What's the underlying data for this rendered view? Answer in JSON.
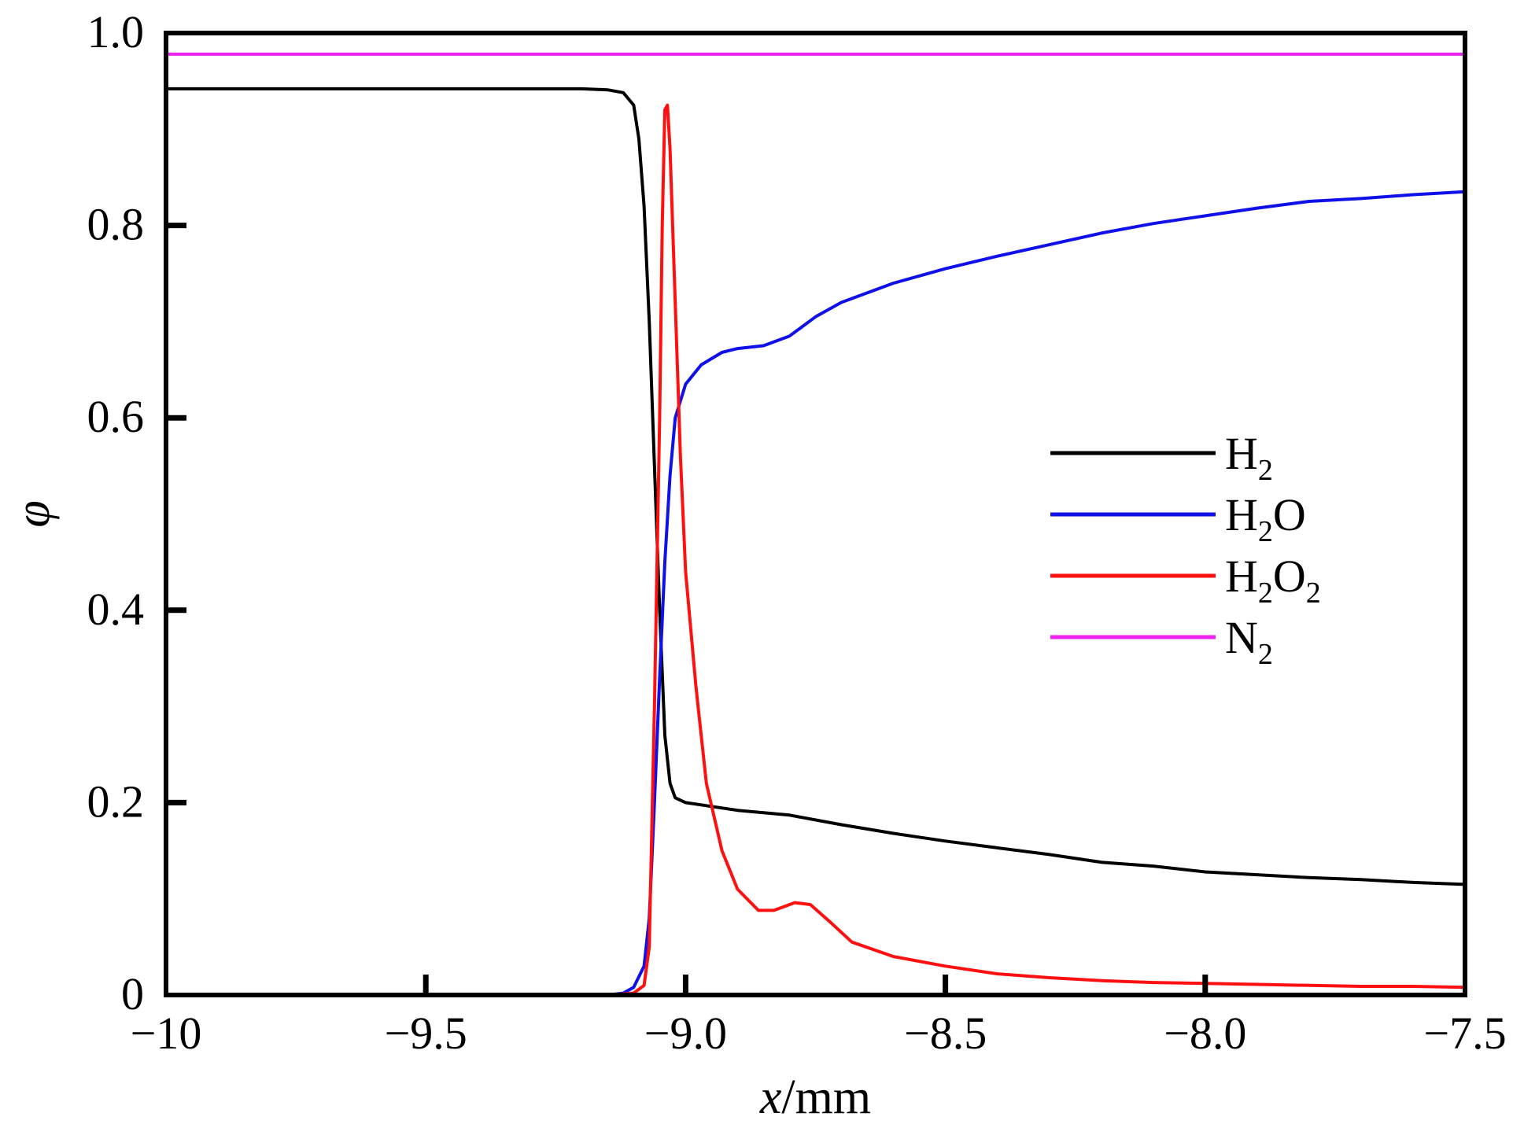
{
  "chart_data": {
    "type": "line",
    "xlabel_var": "x",
    "xlabel_unit": "/mm",
    "ylabel": "φ",
    "xlim": [
      -10,
      -7.5
    ],
    "ylim": [
      0,
      1.0
    ],
    "xticks": [
      -10,
      -9.5,
      -9.0,
      -8.5,
      -8.0,
      -7.5
    ],
    "xtick_labels": [
      "−10",
      "−9.5",
      "−9.0",
      "−8.5",
      "−8.0",
      "−7.5"
    ],
    "yticks": [
      0,
      0.2,
      0.4,
      0.6,
      0.8,
      1.0
    ],
    "ytick_labels": [
      "0",
      "0.2",
      "0.4",
      "0.6",
      "0.8",
      "1.0"
    ],
    "grid": false,
    "legend_position": "center-right",
    "series": [
      {
        "name": "H₂",
        "name_base": "H",
        "name_sub1": "2",
        "name_mid": "",
        "name_sub2": "",
        "color": "#000000",
        "points": [
          [
            -10,
            0.942
          ],
          [
            -9.5,
            0.942
          ],
          [
            -9.2,
            0.942
          ],
          [
            -9.15,
            0.941
          ],
          [
            -9.12,
            0.938
          ],
          [
            -9.1,
            0.925
          ],
          [
            -9.09,
            0.89
          ],
          [
            -9.08,
            0.82
          ],
          [
            -9.07,
            0.7
          ],
          [
            -9.06,
            0.55
          ],
          [
            -9.05,
            0.4
          ],
          [
            -9.04,
            0.27
          ],
          [
            -9.03,
            0.22
          ],
          [
            -9.02,
            0.205
          ],
          [
            -9.0,
            0.2
          ],
          [
            -8.9,
            0.192
          ],
          [
            -8.8,
            0.187
          ],
          [
            -8.7,
            0.177
          ],
          [
            -8.6,
            0.168
          ],
          [
            -8.5,
            0.16
          ],
          [
            -8.4,
            0.153
          ],
          [
            -8.3,
            0.146
          ],
          [
            -8.2,
            0.138
          ],
          [
            -8.1,
            0.134
          ],
          [
            -8.0,
            0.128
          ],
          [
            -7.9,
            0.125
          ],
          [
            -7.8,
            0.122
          ],
          [
            -7.7,
            0.12
          ],
          [
            -7.6,
            0.117
          ],
          [
            -7.5,
            0.115
          ]
        ]
      },
      {
        "name": "H₂O",
        "name_base": "H",
        "name_sub1": "2",
        "name_mid": "O",
        "name_sub2": "",
        "color": "#1010e8",
        "points": [
          [
            -10,
            0.0
          ],
          [
            -9.15,
            0.0
          ],
          [
            -9.12,
            0.002
          ],
          [
            -9.1,
            0.008
          ],
          [
            -9.08,
            0.03
          ],
          [
            -9.07,
            0.08
          ],
          [
            -9.06,
            0.2
          ],
          [
            -9.05,
            0.33
          ],
          [
            -9.04,
            0.45
          ],
          [
            -9.03,
            0.54
          ],
          [
            -9.02,
            0.6
          ],
          [
            -9.0,
            0.635
          ],
          [
            -8.97,
            0.655
          ],
          [
            -8.93,
            0.668
          ],
          [
            -8.9,
            0.672
          ],
          [
            -8.85,
            0.675
          ],
          [
            -8.8,
            0.685
          ],
          [
            -8.75,
            0.705
          ],
          [
            -8.7,
            0.72
          ],
          [
            -8.6,
            0.74
          ],
          [
            -8.5,
            0.755
          ],
          [
            -8.4,
            0.768
          ],
          [
            -8.3,
            0.78
          ],
          [
            -8.2,
            0.792
          ],
          [
            -8.1,
            0.802
          ],
          [
            -8.0,
            0.81
          ],
          [
            -7.9,
            0.818
          ],
          [
            -7.8,
            0.825
          ],
          [
            -7.7,
            0.828
          ],
          [
            -7.6,
            0.832
          ],
          [
            -7.5,
            0.835
          ]
        ]
      },
      {
        "name": "H₂O₂",
        "name_base": "H",
        "name_sub1": "2",
        "name_mid": "O",
        "name_sub2": "2",
        "color": "#ff1010",
        "points": [
          [
            -9.95,
            0.0
          ],
          [
            -9.15,
            0.0
          ],
          [
            -9.1,
            0.002
          ],
          [
            -9.08,
            0.01
          ],
          [
            -9.07,
            0.05
          ],
          [
            -9.06,
            0.3
          ],
          [
            -9.05,
            0.6
          ],
          [
            -9.045,
            0.8
          ],
          [
            -9.04,
            0.92
          ],
          [
            -9.035,
            0.925
          ],
          [
            -9.03,
            0.88
          ],
          [
            -9.02,
            0.72
          ],
          [
            -9.01,
            0.56
          ],
          [
            -9.0,
            0.44
          ],
          [
            -8.98,
            0.32
          ],
          [
            -8.96,
            0.22
          ],
          [
            -8.93,
            0.15
          ],
          [
            -8.9,
            0.11
          ],
          [
            -8.86,
            0.088
          ],
          [
            -8.83,
            0.088
          ],
          [
            -8.79,
            0.096
          ],
          [
            -8.76,
            0.094
          ],
          [
            -8.72,
            0.075
          ],
          [
            -8.68,
            0.055
          ],
          [
            -8.6,
            0.04
          ],
          [
            -8.5,
            0.03
          ],
          [
            -8.4,
            0.022
          ],
          [
            -8.3,
            0.018
          ],
          [
            -8.2,
            0.015
          ],
          [
            -8.1,
            0.013
          ],
          [
            -8.0,
            0.012
          ],
          [
            -7.9,
            0.011
          ],
          [
            -7.8,
            0.01
          ],
          [
            -7.7,
            0.009
          ],
          [
            -7.6,
            0.009
          ],
          [
            -7.5,
            0.008
          ]
        ]
      },
      {
        "name": "N₂",
        "name_base": "N",
        "name_sub1": "2",
        "name_mid": "",
        "name_sub2": "",
        "color": "#ee22ee",
        "points": [
          [
            -10,
            0.978
          ],
          [
            -7.5,
            0.978
          ]
        ]
      }
    ]
  }
}
